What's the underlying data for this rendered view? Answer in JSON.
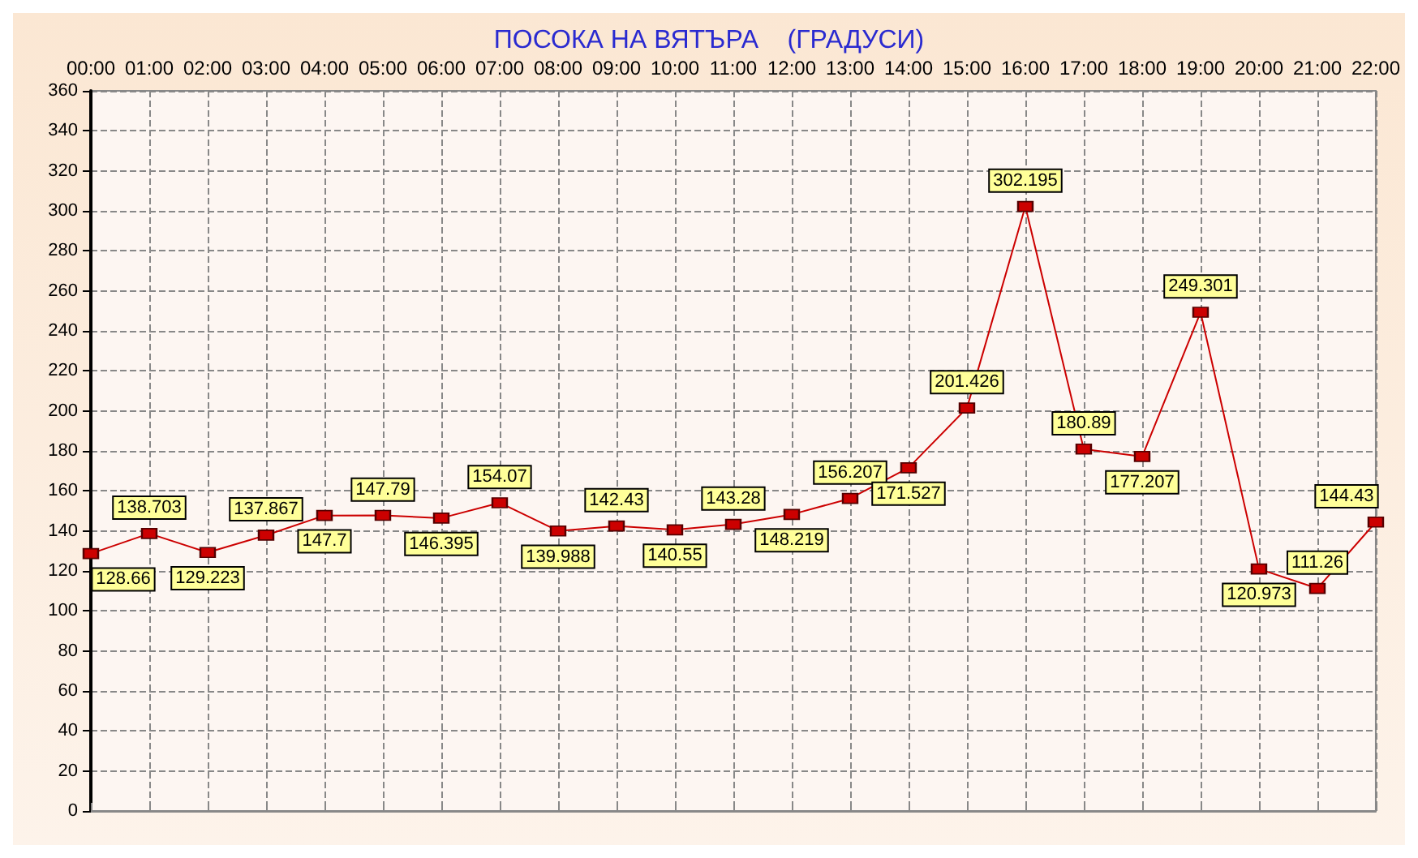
{
  "chart_data": {
    "type": "line",
    "title": "ПОСОКА НА ВЯТЪРА    (ГРАДУСИ)",
    "categories": [
      "00:00",
      "01:00",
      "02:00",
      "03:00",
      "04:00",
      "05:00",
      "06:00",
      "07:00",
      "08:00",
      "09:00",
      "10:00",
      "11:00",
      "12:00",
      "13:00",
      "14:00",
      "15:00",
      "16:00",
      "17:00",
      "18:00",
      "19:00",
      "20:00",
      "21:00",
      "22:00"
    ],
    "series": [
      {
        "color": "#cc0000",
        "values": [
          128.66,
          138.703,
          129.223,
          137.867,
          147.7,
          147.79,
          146.395,
          154.07,
          139.988,
          142.43,
          140.55,
          143.28,
          148.219,
          156.207,
          171.527,
          201.426,
          302.195,
          180.89,
          177.207,
          249.301,
          120.973,
          111.26,
          144.43
        ]
      }
    ],
    "ylim": [
      0,
      360
    ],
    "yticks": [
      0,
      20,
      40,
      60,
      80,
      100,
      120,
      140,
      160,
      180,
      200,
      220,
      240,
      260,
      280,
      300,
      320,
      340,
      360
    ],
    "grid": true,
    "marker": "square",
    "data_labels": true
  }
}
